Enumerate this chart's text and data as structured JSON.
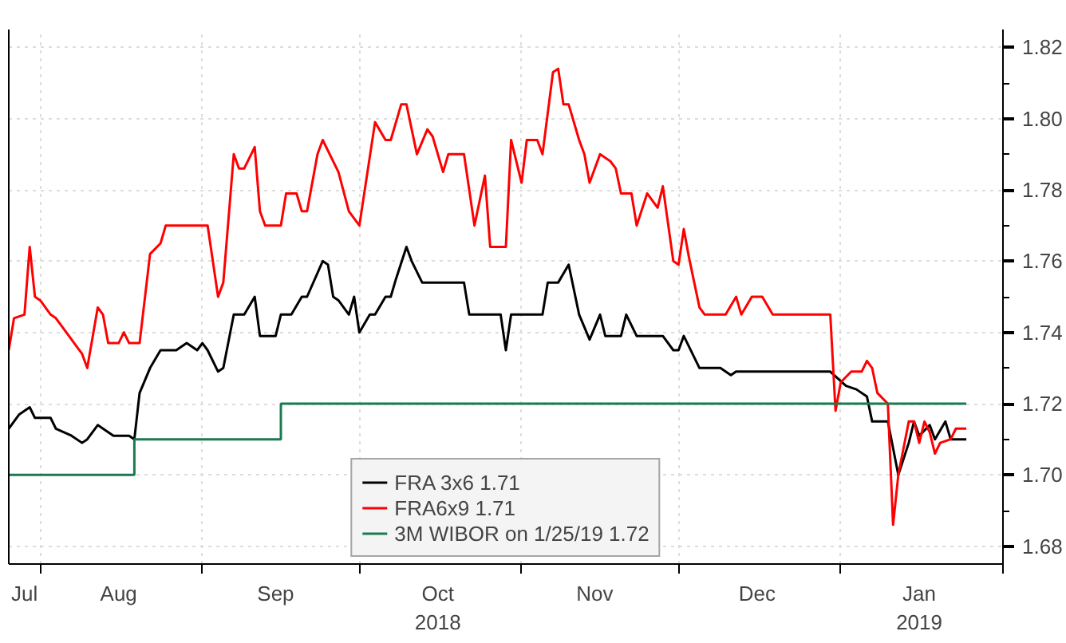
{
  "chart_data": {
    "type": "line",
    "xlim": [
      "2018-07-26",
      "2019-02-01"
    ],
    "xticks": [
      {
        "value": "2018-07-29",
        "label": "Jul"
      },
      {
        "value": "2018-08-01",
        "label": null
      },
      {
        "value": "2018-08-16",
        "label": "Aug"
      },
      {
        "value": "2018-09-01",
        "label": null
      },
      {
        "value": "2018-09-15",
        "label": "Sep"
      },
      {
        "value": "2018-10-01",
        "label": null
      },
      {
        "value": "2018-10-16",
        "label": "Oct\n2018"
      },
      {
        "value": "2018-11-01",
        "label": null
      },
      {
        "value": "2018-11-15",
        "label": "Nov"
      },
      {
        "value": "2018-12-01",
        "label": null
      },
      {
        "value": "2018-12-16",
        "label": "Dec"
      },
      {
        "value": "2019-01-01",
        "label": null
      },
      {
        "value": "2019-01-16",
        "label": "Jan\n2019"
      },
      {
        "value": "2019-02-01",
        "label": null
      }
    ],
    "ylim": [
      1.675,
      1.825
    ],
    "yticks": [
      {
        "value": 1.68,
        "label": "1.68"
      },
      {
        "value": 1.69,
        "label": null
      },
      {
        "value": 1.7,
        "label": "1.70"
      },
      {
        "value": 1.71,
        "label": null
      },
      {
        "value": 1.72,
        "label": "1.72"
      },
      {
        "value": 1.73,
        "label": null
      },
      {
        "value": 1.74,
        "label": "1.74"
      },
      {
        "value": 1.75,
        "label": null
      },
      {
        "value": 1.76,
        "label": "1.76"
      },
      {
        "value": 1.77,
        "label": null
      },
      {
        "value": 1.78,
        "label": "1.78"
      },
      {
        "value": 1.79,
        "label": null
      },
      {
        "value": 1.8,
        "label": "1.80"
      },
      {
        "value": 1.81,
        "label": null
      },
      {
        "value": 1.82,
        "label": "1.82"
      }
    ],
    "grid": true,
    "legend": "bottom",
    "series": [
      {
        "name": "FRA 3x6 1.71",
        "color": "#000000",
        "x": [
          "2018-07-26",
          "2018-07-28",
          "2018-07-30",
          "2018-07-31",
          "2018-08-03",
          "2018-08-04",
          "2018-08-07",
          "2018-08-09",
          "2018-08-10",
          "2018-08-12",
          "2018-08-13",
          "2018-08-15",
          "2018-08-16",
          "2018-08-18",
          "2018-08-19",
          "2018-08-20",
          "2018-08-22",
          "2018-08-24",
          "2018-08-27",
          "2018-08-29",
          "2018-08-31",
          "2018-09-01",
          "2018-09-02",
          "2018-09-04",
          "2018-09-05",
          "2018-09-07",
          "2018-09-09",
          "2018-09-11",
          "2018-09-12",
          "2018-09-15",
          "2018-09-16",
          "2018-09-18",
          "2018-09-20",
          "2018-09-21",
          "2018-09-24",
          "2018-09-25",
          "2018-09-26",
          "2018-09-27",
          "2018-09-29",
          "2018-09-30",
          "2018-10-01",
          "2018-10-03",
          "2018-10-04",
          "2018-10-06",
          "2018-10-07",
          "2018-10-08",
          "2018-10-10",
          "2018-10-11",
          "2018-10-13",
          "2018-10-21",
          "2018-10-22",
          "2018-10-28",
          "2018-10-29",
          "2018-10-30",
          "2018-11-01",
          "2018-11-05",
          "2018-11-06",
          "2018-11-08",
          "2018-11-10",
          "2018-11-12",
          "2018-11-14",
          "2018-11-16",
          "2018-11-17",
          "2018-11-20",
          "2018-11-21",
          "2018-11-23",
          "2018-11-28",
          "2018-11-30",
          "2018-12-01",
          "2018-12-02",
          "2018-12-05",
          "2018-12-09",
          "2018-12-11",
          "2018-12-12",
          "2018-12-30",
          "2019-01-02",
          "2019-01-04",
          "2019-01-06",
          "2019-01-07",
          "2019-01-10",
          "2019-01-12",
          "2019-01-14",
          "2019-01-15",
          "2019-01-16",
          "2019-01-18",
          "2019-01-19",
          "2019-01-21",
          "2019-01-22",
          "2019-01-25"
        ],
        "values": [
          1.713,
          1.717,
          1.719,
          1.716,
          1.716,
          1.713,
          1.711,
          1.709,
          1.71,
          1.714,
          1.713,
          1.711,
          1.711,
          1.711,
          1.71,
          1.723,
          1.73,
          1.735,
          1.735,
          1.737,
          1.735,
          1.737,
          1.735,
          1.729,
          1.73,
          1.745,
          1.745,
          1.75,
          1.739,
          1.739,
          1.745,
          1.745,
          1.75,
          1.75,
          1.76,
          1.759,
          1.75,
          1.749,
          1.745,
          1.75,
          1.74,
          1.745,
          1.745,
          1.75,
          1.75,
          1.755,
          1.764,
          1.76,
          1.754,
          1.754,
          1.745,
          1.745,
          1.735,
          1.745,
          1.745,
          1.745,
          1.754,
          1.754,
          1.759,
          1.745,
          1.738,
          1.745,
          1.739,
          1.739,
          1.745,
          1.739,
          1.739,
          1.735,
          1.735,
          1.739,
          1.73,
          1.73,
          1.728,
          1.729,
          1.729,
          1.725,
          1.724,
          1.722,
          1.715,
          1.715,
          1.7,
          1.709,
          1.715,
          1.711,
          1.714,
          1.71,
          1.715,
          1.71,
          1.71
        ]
      },
      {
        "name": "FRA6x9 1.71",
        "color": "#ff0000",
        "x": [
          "2018-07-26",
          "2018-07-27",
          "2018-07-29",
          "2018-07-30",
          "2018-07-31",
          "2018-08-01",
          "2018-08-03",
          "2018-08-04",
          "2018-08-06",
          "2018-08-08",
          "2018-08-09",
          "2018-08-10",
          "2018-08-12",
          "2018-08-13",
          "2018-08-14",
          "2018-08-16",
          "2018-08-17",
          "2018-08-18",
          "2018-08-20",
          "2018-08-22",
          "2018-08-24",
          "2018-08-25",
          "2018-08-27",
          "2018-09-02",
          "2018-09-04",
          "2018-09-05",
          "2018-09-07",
          "2018-09-08",
          "2018-09-09",
          "2018-09-11",
          "2018-09-12",
          "2018-09-13",
          "2018-09-16",
          "2018-09-17",
          "2018-09-19",
          "2018-09-20",
          "2018-09-21",
          "2018-09-23",
          "2018-09-24",
          "2018-09-27",
          "2018-09-29",
          "2018-10-01",
          "2018-10-04",
          "2018-10-06",
          "2018-10-07",
          "2018-10-09",
          "2018-10-10",
          "2018-10-12",
          "2018-10-14",
          "2018-10-15",
          "2018-10-17",
          "2018-10-18",
          "2018-10-21",
          "2018-10-23",
          "2018-10-25",
          "2018-10-26",
          "2018-10-29",
          "2018-10-30",
          "2018-11-01",
          "2018-11-02",
          "2018-11-04",
          "2018-11-05",
          "2018-11-07",
          "2018-11-08",
          "2018-11-09",
          "2018-11-10",
          "2018-11-12",
          "2018-11-13",
          "2018-11-14",
          "2018-11-16",
          "2018-11-18",
          "2018-11-19",
          "2018-11-20",
          "2018-11-22",
          "2018-11-23",
          "2018-11-25",
          "2018-11-27",
          "2018-11-28",
          "2018-11-30",
          "2018-12-01",
          "2018-12-02",
          "2018-12-03",
          "2018-12-05",
          "2018-12-06",
          "2018-12-10",
          "2018-12-12",
          "2018-12-13",
          "2018-12-15",
          "2018-12-17",
          "2018-12-19",
          "2018-12-30",
          "2018-12-31",
          "2019-01-01",
          "2019-01-03",
          "2019-01-05",
          "2019-01-06",
          "2019-01-07",
          "2019-01-08",
          "2019-01-10",
          "2019-01-11",
          "2019-01-12",
          "2019-01-14",
          "2019-01-15",
          "2019-01-16",
          "2019-01-17",
          "2019-01-18",
          "2019-01-19",
          "2019-01-20",
          "2019-01-22",
          "2019-01-23",
          "2019-01-25"
        ],
        "values": [
          1.735,
          1.744,
          1.745,
          1.764,
          1.75,
          1.749,
          1.745,
          1.744,
          1.74,
          1.736,
          1.734,
          1.73,
          1.747,
          1.745,
          1.737,
          1.737,
          1.74,
          1.737,
          1.737,
          1.762,
          1.765,
          1.77,
          1.77,
          1.77,
          1.75,
          1.754,
          1.79,
          1.786,
          1.786,
          1.792,
          1.774,
          1.77,
          1.77,
          1.779,
          1.779,
          1.774,
          1.774,
          1.79,
          1.794,
          1.785,
          1.774,
          1.77,
          1.799,
          1.794,
          1.794,
          1.804,
          1.804,
          1.79,
          1.797,
          1.795,
          1.785,
          1.79,
          1.79,
          1.77,
          1.784,
          1.764,
          1.764,
          1.794,
          1.782,
          1.794,
          1.794,
          1.79,
          1.813,
          1.814,
          1.804,
          1.804,
          1.794,
          1.79,
          1.782,
          1.79,
          1.788,
          1.786,
          1.779,
          1.779,
          1.77,
          1.779,
          1.775,
          1.781,
          1.76,
          1.759,
          1.769,
          1.761,
          1.747,
          1.745,
          1.745,
          1.75,
          1.745,
          1.75,
          1.75,
          1.745,
          1.745,
          1.718,
          1.726,
          1.729,
          1.729,
          1.732,
          1.73,
          1.723,
          1.72,
          1.686,
          1.7,
          1.715,
          1.715,
          1.709,
          1.715,
          1.712,
          1.706,
          1.709,
          1.71,
          1.713,
          1.713
        ]
      },
      {
        "name": "3M WIBOR on 1/25/19 1.72",
        "color": "#1b7a4f",
        "type": "step",
        "x": [
          "2018-07-26",
          "2018-08-19",
          "2018-09-16",
          "2019-01-25"
        ],
        "values": [
          1.7,
          1.71,
          1.72,
          1.72
        ]
      }
    ]
  }
}
